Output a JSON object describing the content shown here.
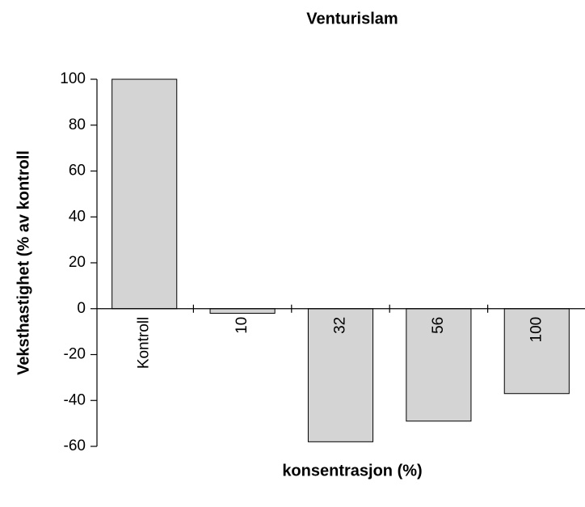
{
  "chart_data": {
    "type": "bar",
    "title": "Venturislam",
    "x_label": "konsentrasjon (%)",
    "y_label": "Veksthastighet (% av kontroll",
    "categories": [
      "Kontroll",
      "10",
      "32",
      "56",
      "100"
    ],
    "values": [
      100,
      -2,
      -58,
      -49,
      -37
    ],
    "color": "#d4d4d4",
    "ylim": [
      -60,
      100
    ],
    "yticks": [
      -60,
      -40,
      -20,
      0,
      20,
      40,
      60,
      80,
      100
    ],
    "grid": false
  }
}
